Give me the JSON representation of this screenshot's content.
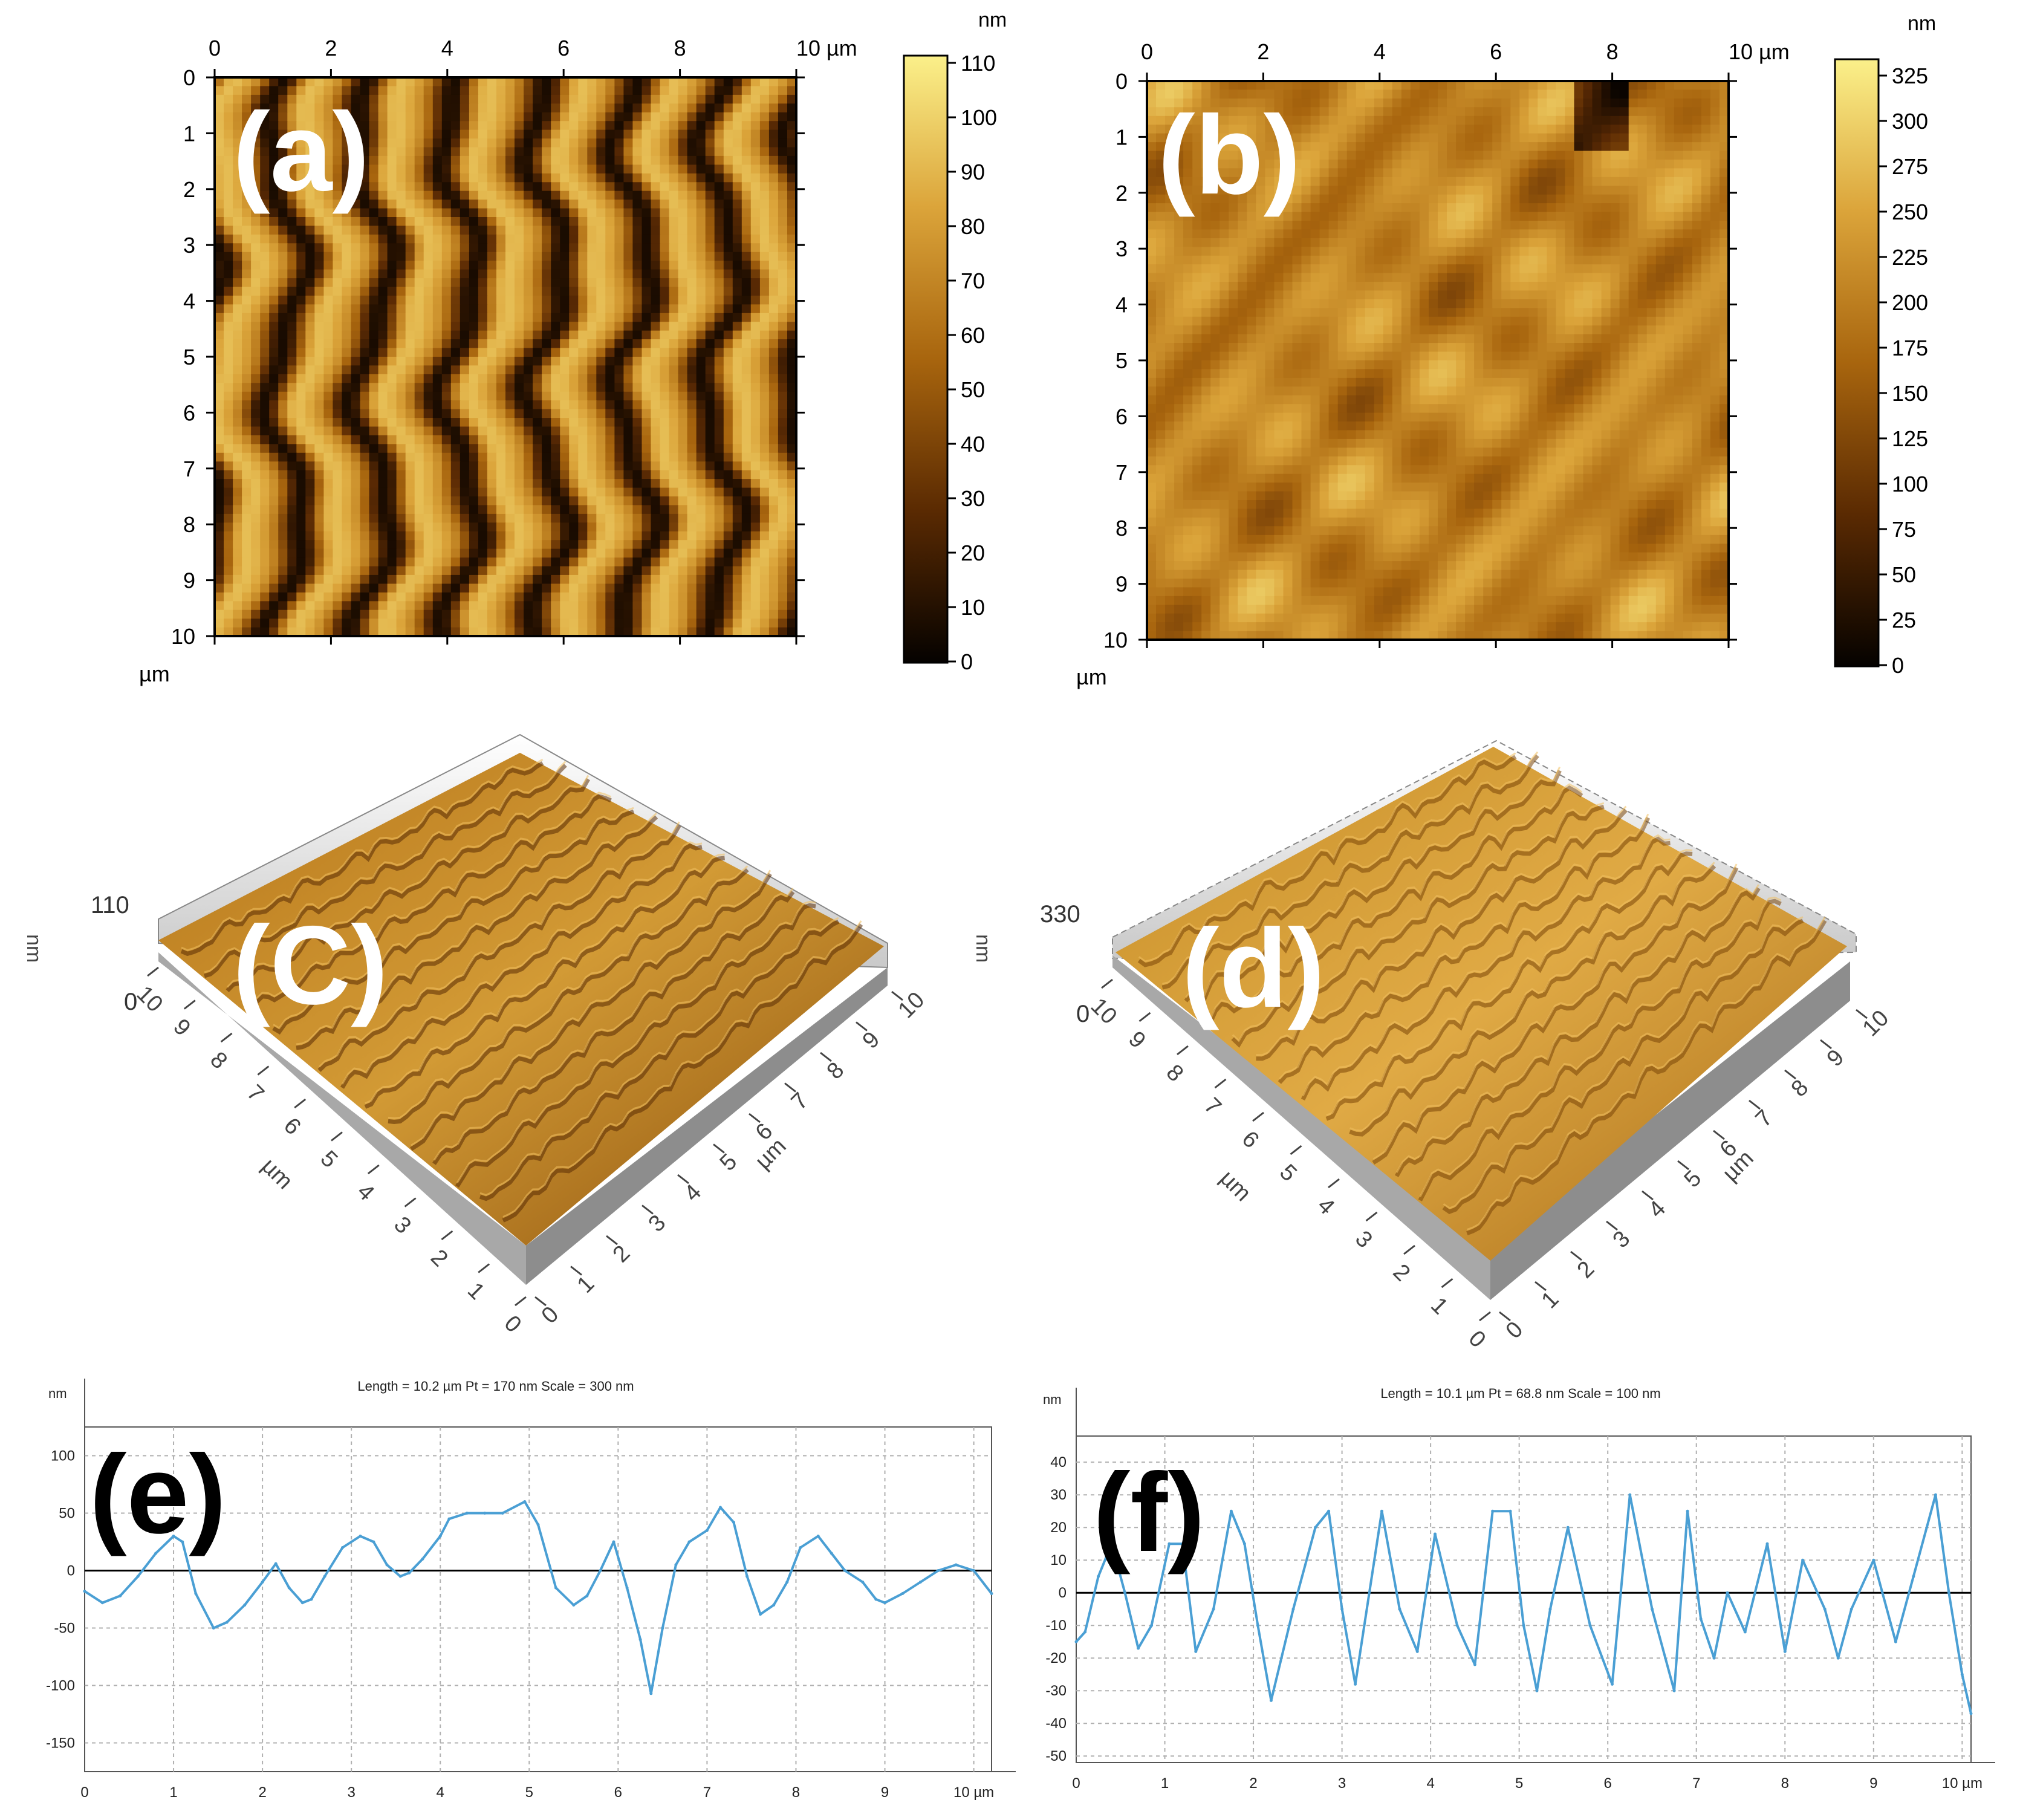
{
  "chart_data": [
    {
      "id": "a",
      "type": "heatmap",
      "label": "(a)",
      "x_ticks": [
        "0",
        "2",
        "4",
        "6",
        "8",
        "10 µm"
      ],
      "y_ticks": [
        "0",
        "1",
        "2",
        "3",
        "4",
        "5",
        "6",
        "7",
        "8",
        "9",
        "10"
      ],
      "unit_label": "µm",
      "xlim": [
        0,
        10
      ],
      "ylim": [
        0,
        10
      ],
      "colorbar": {
        "unit": "nm",
        "min": 0,
        "max": 110,
        "ticks": [
          "0",
          "10",
          "20",
          "30",
          "40",
          "50",
          "60",
          "70",
          "80",
          "90",
          "100",
          "110"
        ]
      },
      "pattern": "stripes",
      "colors": {
        "dark": "#1a0a00",
        "mid": "#a8650e",
        "light": "#f6de78"
      }
    },
    {
      "id": "b",
      "type": "heatmap",
      "label": "(b)",
      "x_ticks": [
        "0",
        "2",
        "4",
        "6",
        "8",
        "10 µm"
      ],
      "y_ticks": [
        "0",
        "1",
        "2",
        "3",
        "4",
        "5",
        "6",
        "7",
        "8",
        "9",
        "10"
      ],
      "unit_label": "µm",
      "xlim": [
        0,
        10
      ],
      "ylim": [
        0,
        10
      ],
      "colorbar": {
        "unit": "nm",
        "min": 0,
        "max": 330,
        "ticks": [
          "0",
          "25",
          "50",
          "75",
          "100",
          "125",
          "150",
          "175",
          "200",
          "225",
          "250",
          "275",
          "300",
          "325"
        ]
      },
      "pattern": "blobs",
      "colors": {
        "dark": "#1a0a00",
        "mid": "#c8881a",
        "light": "#f6de78"
      }
    },
    {
      "id": "c",
      "type": "surface3d",
      "label": "(C)",
      "z_label": "nm",
      "z_max": "110",
      "z_min": "0",
      "axis_unit": "µm",
      "left_ticks": [
        "10",
        "9",
        "8",
        "7",
        "6",
        "5",
        "4",
        "3",
        "2",
        "1",
        "0"
      ],
      "right_ticks": [
        "0",
        "1",
        "2",
        "3",
        "4",
        "5",
        "6",
        "7",
        "8",
        "9",
        "10"
      ]
    },
    {
      "id": "d",
      "type": "surface3d",
      "label": "(d)",
      "z_label": "nm",
      "z_max": "330",
      "z_min": "0",
      "axis_unit": "µm",
      "left_ticks": [
        "10",
        "9",
        "8",
        "7",
        "6",
        "5",
        "4",
        "3",
        "2",
        "1",
        "0"
      ],
      "right_ticks": [
        "0",
        "1",
        "2",
        "3",
        "4",
        "5",
        "6",
        "7",
        "8",
        "9",
        "10"
      ]
    },
    {
      "id": "e",
      "type": "line",
      "label": "(e)",
      "title": "Length = 10.2 µm  Pt = 170 nm  Scale = 300 nm",
      "ylabel": "nm",
      "xlim": [
        0,
        10.2
      ],
      "ylim": [
        -175,
        125
      ],
      "y_ticks": [
        100,
        50,
        0,
        -50,
        -100,
        -150
      ],
      "x_ticks": [
        "0",
        "1",
        "2",
        "3",
        "4",
        "5",
        "6",
        "7",
        "8",
        "9",
        "10 µm"
      ],
      "x": [
        0,
        0.2,
        0.4,
        0.6,
        0.8,
        1.0,
        1.1,
        1.25,
        1.45,
        1.6,
        1.8,
        2.0,
        2.15,
        2.3,
        2.45,
        2.55,
        2.7,
        2.9,
        3.1,
        3.25,
        3.4,
        3.55,
        3.65,
        3.8,
        4.0,
        4.1,
        4.3,
        4.5,
        4.7,
        4.95,
        5.1,
        5.3,
        5.5,
        5.65,
        5.8,
        5.95,
        6.1,
        6.25,
        6.37,
        6.5,
        6.65,
        6.8,
        7.0,
        7.15,
        7.3,
        7.45,
        7.6,
        7.75,
        7.9,
        8.05,
        8.25,
        8.4,
        8.55,
        8.75,
        8.9,
        9.0,
        9.2,
        9.4,
        9.6,
        9.8,
        10.0,
        10.2
      ],
      "values": [
        -18,
        -28,
        -22,
        -5,
        15,
        30,
        25,
        -20,
        -50,
        -45,
        -30,
        -10,
        6,
        -15,
        -28,
        -25,
        -5,
        20,
        30,
        25,
        5,
        -5,
        -2,
        10,
        30,
        45,
        50,
        50,
        50,
        60,
        40,
        -15,
        -30,
        -22,
        0,
        25,
        -15,
        -60,
        -107,
        -50,
        5,
        25,
        35,
        55,
        42,
        -5,
        -38,
        -30,
        -10,
        20,
        30,
        15,
        0,
        -10,
        -25,
        -28,
        -20,
        -10,
        0,
        5,
        0,
        -20
      ],
      "colors": {
        "line": "#4a9fd4",
        "zero": "#000000",
        "grid": "#b0b0b0"
      }
    },
    {
      "id": "f",
      "type": "line",
      "label": "(f)",
      "title": "Length = 10.1 µm  Pt = 68.8 nm  Scale = 100 nm",
      "ylabel": "nm",
      "xlim": [
        0,
        10.1
      ],
      "ylim": [
        -52,
        48
      ],
      "y_ticks": [
        40,
        30,
        20,
        10,
        0,
        -10,
        -20,
        -30,
        -40,
        -50
      ],
      "x_ticks": [
        "0",
        "1",
        "2",
        "3",
        "4",
        "5",
        "6",
        "7",
        "8",
        "9",
        "10 µm"
      ],
      "x": [
        0,
        0.1,
        0.25,
        0.4,
        0.55,
        0.7,
        0.85,
        1.05,
        1.2,
        1.35,
        1.55,
        1.75,
        1.9,
        2.05,
        2.2,
        2.45,
        2.7,
        2.85,
        3.0,
        3.15,
        3.45,
        3.65,
        3.85,
        4.05,
        4.3,
        4.5,
        4.7,
        4.9,
        5.05,
        5.2,
        5.35,
        5.55,
        5.8,
        6.05,
        6.25,
        6.5,
        6.75,
        6.9,
        7.05,
        7.2,
        7.35,
        7.55,
        7.8,
        8.0,
        8.2,
        8.45,
        8.6,
        8.75,
        9.0,
        9.25,
        9.45,
        9.7,
        9.85,
        10.0,
        10.1
      ],
      "values": [
        -15,
        -12,
        5,
        15,
        0,
        -17,
        -10,
        15,
        15,
        -18,
        -5,
        25,
        15,
        -10,
        -33,
        -5,
        20,
        25,
        -5,
        -28,
        25,
        -5,
        -18,
        18,
        -10,
        -22,
        25,
        25,
        -10,
        -30,
        -5,
        20,
        -10,
        -28,
        30,
        -5,
        -30,
        25,
        -8,
        -20,
        0,
        -12,
        15,
        -18,
        10,
        -5,
        -20,
        -5,
        10,
        -15,
        5,
        30,
        0,
        -25,
        -37
      ],
      "colors": {
        "line": "#4a9fd4",
        "zero": "#000000",
        "grid": "#b0b0b0"
      }
    }
  ]
}
